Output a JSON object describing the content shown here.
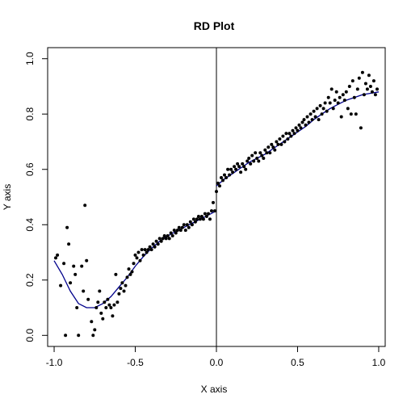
{
  "chart_data": {
    "type": "scatter",
    "title": "RD Plot",
    "xlabel": "X axis",
    "ylabel": "Y axis",
    "xlim": [
      -1.04,
      1.04
    ],
    "ylim": [
      -0.04,
      1.04
    ],
    "x_ticks": [
      -1.0,
      -0.5,
      0.0,
      0.5,
      1.0
    ],
    "x_tick_labels": [
      "-1.0",
      "-0.5",
      "0.0",
      "0.5",
      "1.0"
    ],
    "y_ticks": [
      0.0,
      0.2,
      0.4,
      0.6,
      0.8,
      1.0
    ],
    "y_tick_labels": [
      "0.0",
      "0.2",
      "0.4",
      "0.6",
      "0.8",
      "1.0"
    ],
    "cutoff": 0.0,
    "grid": false,
    "colors": {
      "points": "#000000",
      "fit": "#00008b",
      "cutoff_line": "#000000"
    },
    "points": [
      [
        -0.99,
        0.28
      ],
      [
        -0.98,
        0.29
      ],
      [
        -0.96,
        0.18
      ],
      [
        -0.94,
        0.26
      ],
      [
        -0.93,
        0.0
      ],
      [
        -0.92,
        0.39
      ],
      [
        -0.91,
        0.33
      ],
      [
        -0.9,
        0.19
      ],
      [
        -0.88,
        0.25
      ],
      [
        -0.87,
        0.22
      ],
      [
        -0.86,
        0.1
      ],
      [
        -0.85,
        0.0
      ],
      [
        -0.83,
        0.25
      ],
      [
        -0.82,
        0.16
      ],
      [
        -0.81,
        0.47
      ],
      [
        -0.8,
        0.27
      ],
      [
        -0.79,
        0.13
      ],
      [
        -0.77,
        0.05
      ],
      [
        -0.76,
        0.0
      ],
      [
        -0.75,
        0.02
      ],
      [
        -0.74,
        0.1
      ],
      [
        -0.73,
        0.12
      ],
      [
        -0.72,
        0.16
      ],
      [
        -0.71,
        0.08
      ],
      [
        -0.7,
        0.06
      ],
      [
        -0.69,
        0.12
      ],
      [
        -0.68,
        0.1
      ],
      [
        -0.67,
        0.13
      ],
      [
        -0.66,
        0.11
      ],
      [
        -0.65,
        0.1
      ],
      [
        -0.64,
        0.07
      ],
      [
        -0.63,
        0.11
      ],
      [
        -0.62,
        0.22
      ],
      [
        -0.61,
        0.12
      ],
      [
        -0.6,
        0.15
      ],
      [
        -0.59,
        0.17
      ],
      [
        -0.58,
        0.19
      ],
      [
        -0.57,
        0.16
      ],
      [
        -0.56,
        0.18
      ],
      [
        -0.55,
        0.21
      ],
      [
        -0.54,
        0.24
      ],
      [
        -0.53,
        0.22
      ],
      [
        -0.52,
        0.23
      ],
      [
        -0.51,
        0.26
      ],
      [
        -0.5,
        0.29
      ],
      [
        -0.49,
        0.28
      ],
      [
        -0.48,
        0.3
      ],
      [
        -0.47,
        0.27
      ],
      [
        -0.46,
        0.31
      ],
      [
        -0.45,
        0.29
      ],
      [
        -0.44,
        0.31
      ],
      [
        -0.43,
        0.3
      ],
      [
        -0.42,
        0.31
      ],
      [
        -0.41,
        0.32
      ],
      [
        -0.4,
        0.31
      ],
      [
        -0.39,
        0.33
      ],
      [
        -0.38,
        0.32
      ],
      [
        -0.37,
        0.34
      ],
      [
        -0.36,
        0.33
      ],
      [
        -0.35,
        0.35
      ],
      [
        -0.34,
        0.34
      ],
      [
        -0.33,
        0.35
      ],
      [
        -0.32,
        0.36
      ],
      [
        -0.31,
        0.35
      ],
      [
        -0.3,
        0.36
      ],
      [
        -0.29,
        0.35
      ],
      [
        -0.28,
        0.37
      ],
      [
        -0.27,
        0.36
      ],
      [
        -0.26,
        0.38
      ],
      [
        -0.25,
        0.37
      ],
      [
        -0.24,
        0.38
      ],
      [
        -0.23,
        0.39
      ],
      [
        -0.22,
        0.38
      ],
      [
        -0.21,
        0.39
      ],
      [
        -0.2,
        0.4
      ],
      [
        -0.19,
        0.38
      ],
      [
        -0.18,
        0.4
      ],
      [
        -0.17,
        0.39
      ],
      [
        -0.16,
        0.41
      ],
      [
        -0.15,
        0.4
      ],
      [
        -0.14,
        0.42
      ],
      [
        -0.13,
        0.41
      ],
      [
        -0.12,
        0.42
      ],
      [
        -0.11,
        0.43
      ],
      [
        -0.1,
        0.42
      ],
      [
        -0.09,
        0.43
      ],
      [
        -0.08,
        0.42
      ],
      [
        -0.07,
        0.44
      ],
      [
        -0.06,
        0.43
      ],
      [
        -0.05,
        0.44
      ],
      [
        -0.04,
        0.42
      ],
      [
        -0.03,
        0.45
      ],
      [
        -0.02,
        0.48
      ],
      [
        -0.01,
        0.45
      ],
      [
        0.0,
        0.52
      ],
      [
        0.01,
        0.55
      ],
      [
        0.02,
        0.54
      ],
      [
        0.03,
        0.57
      ],
      [
        0.04,
        0.56
      ],
      [
        0.05,
        0.58
      ],
      [
        0.06,
        0.57
      ],
      [
        0.07,
        0.6
      ],
      [
        0.08,
        0.58
      ],
      [
        0.09,
        0.6
      ],
      [
        0.1,
        0.59
      ],
      [
        0.11,
        0.61
      ],
      [
        0.12,
        0.6
      ],
      [
        0.13,
        0.62
      ],
      [
        0.14,
        0.61
      ],
      [
        0.15,
        0.59
      ],
      [
        0.16,
        0.62
      ],
      [
        0.17,
        0.61
      ],
      [
        0.18,
        0.6
      ],
      [
        0.19,
        0.63
      ],
      [
        0.2,
        0.64
      ],
      [
        0.21,
        0.62
      ],
      [
        0.22,
        0.65
      ],
      [
        0.23,
        0.63
      ],
      [
        0.24,
        0.66
      ],
      [
        0.25,
        0.64
      ],
      [
        0.26,
        0.63
      ],
      [
        0.27,
        0.66
      ],
      [
        0.28,
        0.65
      ],
      [
        0.29,
        0.64
      ],
      [
        0.3,
        0.67
      ],
      [
        0.31,
        0.66
      ],
      [
        0.32,
        0.68
      ],
      [
        0.33,
        0.66
      ],
      [
        0.34,
        0.69
      ],
      [
        0.35,
        0.68
      ],
      [
        0.36,
        0.67
      ],
      [
        0.37,
        0.7
      ],
      [
        0.38,
        0.69
      ],
      [
        0.39,
        0.71
      ],
      [
        0.4,
        0.69
      ],
      [
        0.41,
        0.72
      ],
      [
        0.42,
        0.7
      ],
      [
        0.43,
        0.73
      ],
      [
        0.44,
        0.71
      ],
      [
        0.45,
        0.73
      ],
      [
        0.46,
        0.72
      ],
      [
        0.47,
        0.74
      ],
      [
        0.48,
        0.73
      ],
      [
        0.49,
        0.75
      ],
      [
        0.5,
        0.74
      ],
      [
        0.51,
        0.76
      ],
      [
        0.52,
        0.75
      ],
      [
        0.53,
        0.77
      ],
      [
        0.54,
        0.78
      ],
      [
        0.55,
        0.76
      ],
      [
        0.56,
        0.79
      ],
      [
        0.57,
        0.77
      ],
      [
        0.58,
        0.8
      ],
      [
        0.59,
        0.78
      ],
      [
        0.6,
        0.81
      ],
      [
        0.61,
        0.79
      ],
      [
        0.62,
        0.82
      ],
      [
        0.63,
        0.78
      ],
      [
        0.64,
        0.83
      ],
      [
        0.65,
        0.8
      ],
      [
        0.66,
        0.82
      ],
      [
        0.67,
        0.84
      ],
      [
        0.68,
        0.81
      ],
      [
        0.69,
        0.86
      ],
      [
        0.7,
        0.84
      ],
      [
        0.71,
        0.89
      ],
      [
        0.72,
        0.82
      ],
      [
        0.73,
        0.85
      ],
      [
        0.74,
        0.88
      ],
      [
        0.75,
        0.84
      ],
      [
        0.76,
        0.86
      ],
      [
        0.77,
        0.79
      ],
      [
        0.78,
        0.87
      ],
      [
        0.79,
        0.85
      ],
      [
        0.8,
        0.88
      ],
      [
        0.81,
        0.82
      ],
      [
        0.82,
        0.9
      ],
      [
        0.83,
        0.8
      ],
      [
        0.84,
        0.92
      ],
      [
        0.85,
        0.86
      ],
      [
        0.86,
        0.8
      ],
      [
        0.87,
        0.89
      ],
      [
        0.88,
        0.93
      ],
      [
        0.89,
        0.75
      ],
      [
        0.9,
        0.95
      ],
      [
        0.91,
        0.87
      ],
      [
        0.92,
        0.91
      ],
      [
        0.93,
        0.89
      ],
      [
        0.94,
        0.94
      ],
      [
        0.95,
        0.9
      ],
      [
        0.96,
        0.88
      ],
      [
        0.97,
        0.92
      ],
      [
        0.98,
        0.87
      ],
      [
        0.99,
        0.89
      ]
    ],
    "fit_left": [
      [
        -1.0,
        0.27
      ],
      [
        -0.95,
        0.22
      ],
      [
        -0.9,
        0.16
      ],
      [
        -0.85,
        0.115
      ],
      [
        -0.8,
        0.1
      ],
      [
        -0.75,
        0.1
      ],
      [
        -0.7,
        0.115
      ],
      [
        -0.65,
        0.14
      ],
      [
        -0.6,
        0.175
      ],
      [
        -0.55,
        0.21
      ],
      [
        -0.5,
        0.25
      ],
      [
        -0.45,
        0.285
      ],
      [
        -0.4,
        0.315
      ],
      [
        -0.35,
        0.34
      ],
      [
        -0.3,
        0.36
      ],
      [
        -0.25,
        0.375
      ],
      [
        -0.2,
        0.39
      ],
      [
        -0.15,
        0.405
      ],
      [
        -0.1,
        0.42
      ],
      [
        -0.05,
        0.435
      ],
      [
        0.0,
        0.45
      ]
    ],
    "fit_right": [
      [
        0.0,
        0.54
      ],
      [
        0.05,
        0.565
      ],
      [
        0.1,
        0.585
      ],
      [
        0.15,
        0.605
      ],
      [
        0.2,
        0.625
      ],
      [
        0.25,
        0.64
      ],
      [
        0.3,
        0.655
      ],
      [
        0.35,
        0.675
      ],
      [
        0.4,
        0.695
      ],
      [
        0.45,
        0.715
      ],
      [
        0.5,
        0.735
      ],
      [
        0.55,
        0.755
      ],
      [
        0.6,
        0.78
      ],
      [
        0.65,
        0.8
      ],
      [
        0.7,
        0.82
      ],
      [
        0.75,
        0.835
      ],
      [
        0.8,
        0.85
      ],
      [
        0.85,
        0.86
      ],
      [
        0.9,
        0.87
      ],
      [
        0.95,
        0.875
      ],
      [
        1.0,
        0.88
      ]
    ]
  }
}
